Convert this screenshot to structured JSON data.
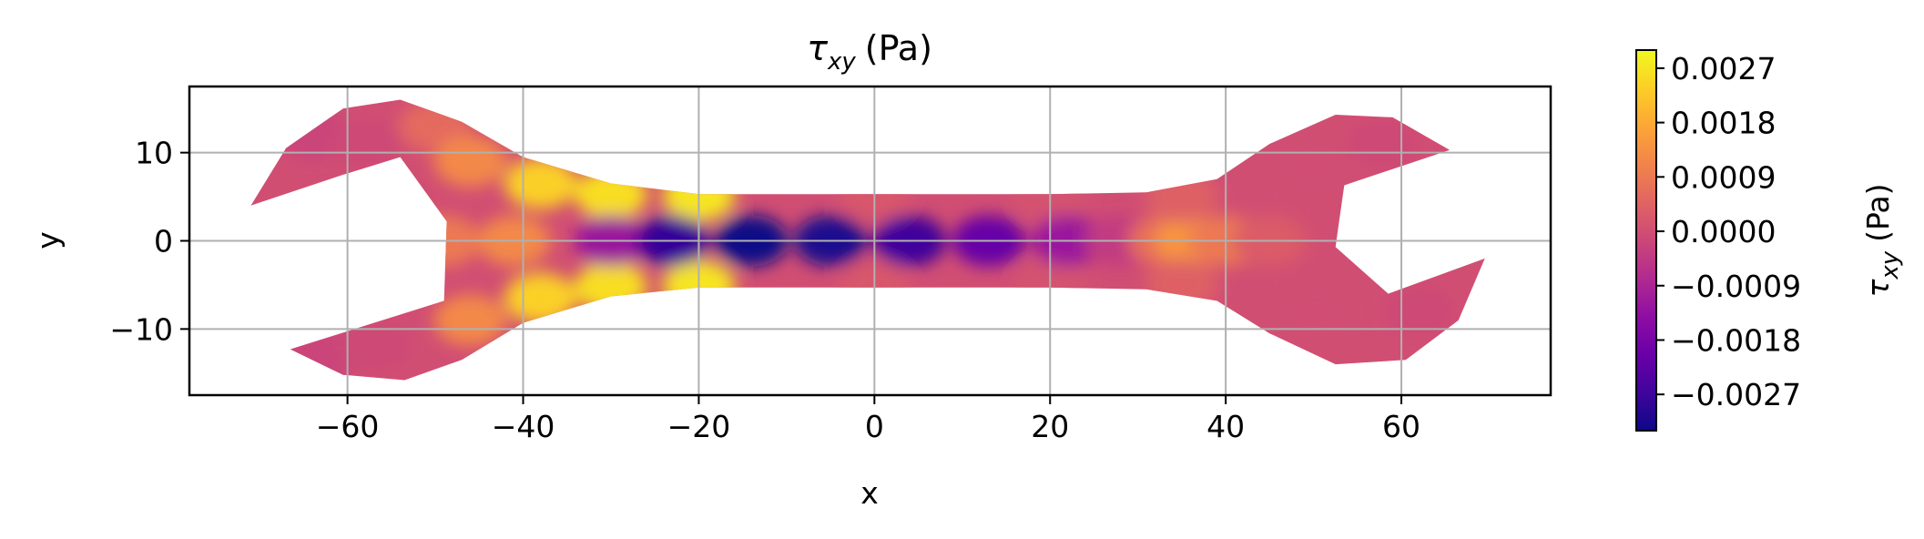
{
  "chart_data": {
    "type": "heatmap",
    "title": {
      "base": "τ",
      "sub": "xy",
      "unit": "(Pa)"
    },
    "xlabel": "x",
    "ylabel": "y",
    "xlim": [
      -78,
      77
    ],
    "ylim": [
      -17.5,
      17.5
    ],
    "xticks": [
      -60,
      -40,
      -20,
      0,
      20,
      40,
      60
    ],
    "xtick_labels": [
      "−60",
      "−40",
      "−20",
      "0",
      "20",
      "40",
      "60"
    ],
    "yticks": [
      -10,
      0,
      10
    ],
    "ytick_labels": [
      "−10",
      "0",
      "10"
    ],
    "grid": true,
    "colormap": "plasma",
    "colorbar": {
      "label": {
        "base": "τ",
        "sub": "xy",
        "unit": "(Pa)"
      },
      "range": [
        -0.0033,
        0.003
      ],
      "ticks": [
        0.0027,
        0.0018,
        0.0009,
        0.0,
        -0.0009,
        -0.0018,
        -0.0027
      ],
      "tick_labels": [
        "0.0027",
        "0.0018",
        "0.0009",
        "0.0000",
        "−0.0009",
        "−0.0018",
        "−0.0027"
      ]
    },
    "outline": [
      [
        -71,
        4
      ],
      [
        -67,
        10.5
      ],
      [
        -60.5,
        15
      ],
      [
        -54,
        16
      ],
      [
        -47,
        13.5
      ],
      [
        -40,
        9.5
      ],
      [
        -30,
        6.5
      ],
      [
        -20,
        5.3
      ],
      [
        0,
        5.3
      ],
      [
        20,
        5.3
      ],
      [
        31,
        5.5
      ],
      [
        39,
        7
      ],
      [
        45,
        11
      ],
      [
        52.5,
        14.3
      ],
      [
        59,
        14
      ],
      [
        65.5,
        10.3
      ],
      [
        53.5,
        6.3
      ],
      [
        52.5,
        -0.7
      ],
      [
        58.5,
        -6
      ],
      [
        69.5,
        -2
      ],
      [
        66.5,
        -9
      ],
      [
        60.5,
        -13.5
      ],
      [
        52.5,
        -14
      ],
      [
        45,
        -10.5
      ],
      [
        39,
        -6.8
      ],
      [
        31,
        -5.5
      ],
      [
        20,
        -5.3
      ],
      [
        0,
        -5.3
      ],
      [
        -20,
        -5.3
      ],
      [
        -30,
        -6.3
      ],
      [
        -40,
        -9.3
      ],
      [
        -47,
        -13.5
      ],
      [
        -53.5,
        -15.8
      ],
      [
        -60.5,
        -15.2
      ],
      [
        -66.5,
        -12.3
      ],
      [
        -49,
        -6.8
      ],
      [
        -48.7,
        2.2
      ],
      [
        -54,
        9.5
      ],
      [
        -60.5,
        7.5
      ]
    ],
    "field_samples": [
      {
        "x": -64,
        "y": 12,
        "value": -0.0002
      },
      {
        "x": -58,
        "y": 11,
        "value": -0.0001
      },
      {
        "x": -63,
        "y": -13,
        "value": -0.0002
      },
      {
        "x": -57,
        "y": -12,
        "value": -0.0001
      },
      {
        "x": -50,
        "y": 13,
        "value": 0.0006
      },
      {
        "x": -46,
        "y": 9,
        "value": 0.0012
      },
      {
        "x": -46,
        "y": -9,
        "value": 0.0012
      },
      {
        "x": -49,
        "y": 0,
        "value": 0.0009
      },
      {
        "x": -41,
        "y": 0,
        "value": 0.0012
      },
      {
        "x": -38,
        "y": 6.5,
        "value": 0.0024
      },
      {
        "x": -38,
        "y": -6.5,
        "value": 0.0024
      },
      {
        "x": -30,
        "y": 5.3,
        "value": 0.0026
      },
      {
        "x": -30,
        "y": -5.2,
        "value": 0.0026
      },
      {
        "x": -20,
        "y": 5.1,
        "value": 0.0027
      },
      {
        "x": -20,
        "y": -5.1,
        "value": 0.0027
      },
      {
        "x": 0,
        "y": 5.1,
        "value": 0.0002
      },
      {
        "x": 0,
        "y": -5.1,
        "value": 0.0002
      },
      {
        "x": 20,
        "y": 5.1,
        "value": 0.0001
      },
      {
        "x": 20,
        "y": -5.1,
        "value": 0.0001
      },
      {
        "x": -30,
        "y": 0,
        "value": -0.0012
      },
      {
        "x": -23,
        "y": 0,
        "value": -0.0028
      },
      {
        "x": -14,
        "y": 0,
        "value": -0.0033
      },
      {
        "x": -5,
        "y": 0,
        "value": -0.0031
      },
      {
        "x": 4,
        "y": 0,
        "value": -0.0027
      },
      {
        "x": 13,
        "y": 0,
        "value": -0.0021
      },
      {
        "x": 22,
        "y": 0,
        "value": -0.0012
      },
      {
        "x": 28,
        "y": 0,
        "value": -0.0004
      },
      {
        "x": 33,
        "y": 0,
        "value": 0.0007
      },
      {
        "x": 36,
        "y": 0,
        "value": 0.0014
      },
      {
        "x": 40,
        "y": 0,
        "value": 0.0009
      },
      {
        "x": 35,
        "y": 5,
        "value": 0.0004
      },
      {
        "x": 35,
        "y": -5,
        "value": 0.0004
      },
      {
        "x": 45,
        "y": 0,
        "value": 0.0003
      },
      {
        "x": 50,
        "y": 8,
        "value": 0.0
      },
      {
        "x": 50,
        "y": -8,
        "value": 0.0
      },
      {
        "x": 58,
        "y": 11,
        "value": -0.0001
      },
      {
        "x": 62,
        "y": -8,
        "value": -0.0001
      }
    ]
  }
}
